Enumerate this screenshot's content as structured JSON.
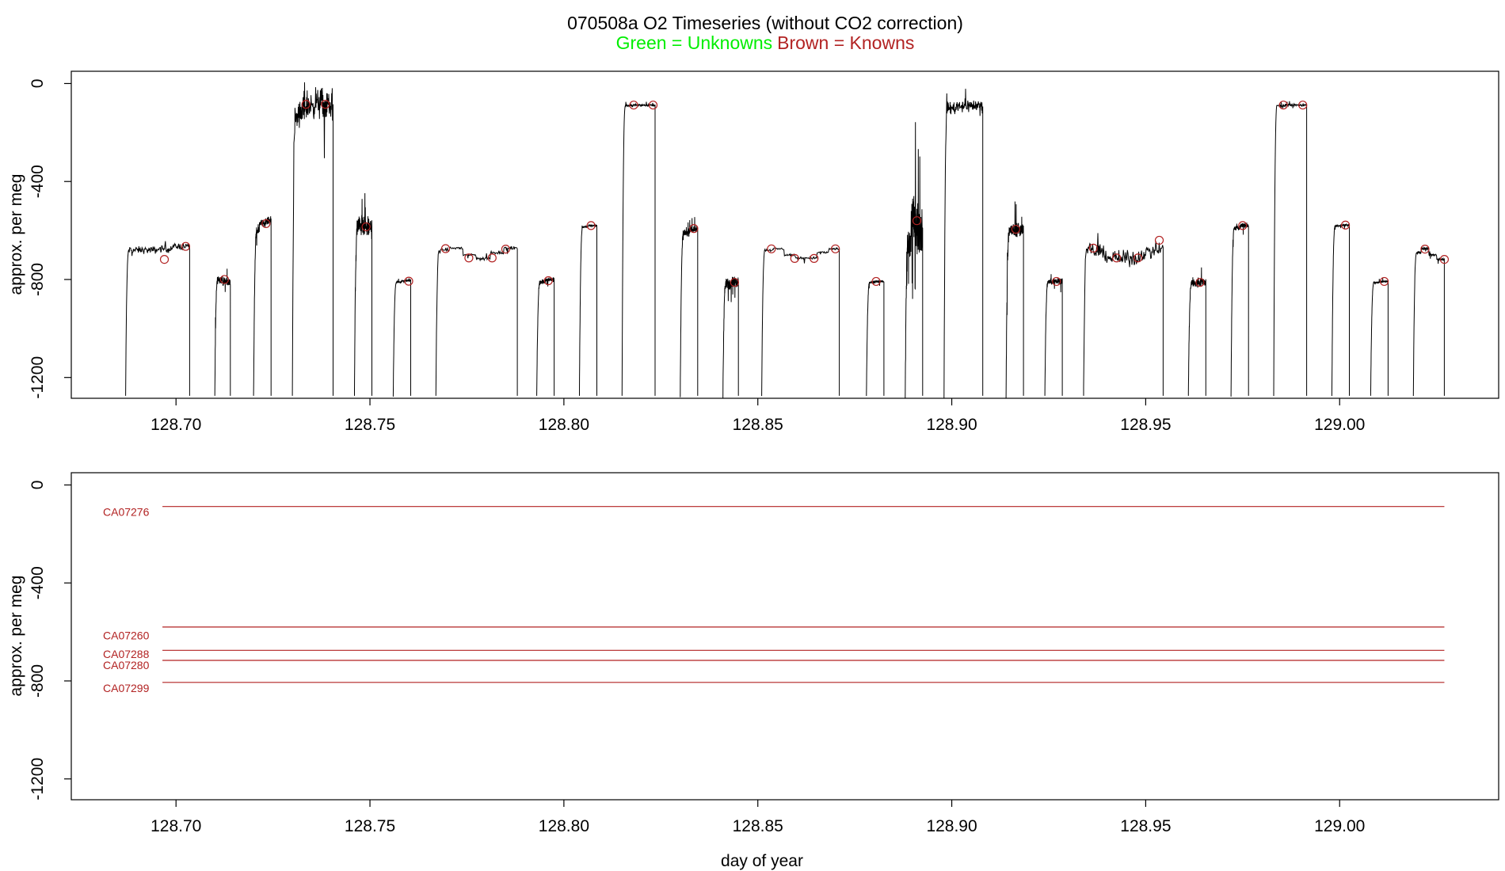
{
  "colors": {
    "unknowns": "#00ee00",
    "knowns": "#b22222",
    "trace": "#000000",
    "frame": "#000000"
  },
  "chart_data": [
    {
      "type": "line",
      "title": "070508a   O2 Timeseries (without CO2 correction)",
      "subtitle_parts": [
        "Green = Unknowns",
        "Brown = Knowns"
      ],
      "xlabel": "",
      "ylabel": "approx. per meg",
      "xlim": [
        128.673,
        129.041
      ],
      "ylim": [
        -1285,
        50
      ],
      "xticks": [
        128.7,
        128.75,
        128.8,
        128.85,
        128.9,
        128.95,
        129.0
      ],
      "xtick_labels": [
        "128.70",
        "128.75",
        "128.80",
        "128.85",
        "128.90",
        "128.95",
        "129.00"
      ],
      "yticks": [
        0,
        -400,
        -800,
        -1200
      ],
      "ytick_labels": [
        "0",
        "-400",
        "-800",
        "-1200"
      ],
      "segments": [
        {
          "start": 128.687,
          "end": 128.7035,
          "levels": [
            -680,
            -680,
            -675,
            -665
          ],
          "noise": 14
        },
        {
          "start": 128.71,
          "end": 128.714,
          "levels": [
            -800,
            -810
          ],
          "noise": 15
        },
        {
          "start": 128.72,
          "end": 128.7245,
          "levels": [
            -600,
            -570,
            -560
          ],
          "noise": 14
        },
        {
          "start": 128.73,
          "end": 128.7405,
          "levels": [
            -130,
            -90,
            -80,
            -90
          ],
          "noise": 60
        },
        {
          "start": 128.746,
          "end": 128.7505,
          "levels": [
            -580,
            -590
          ],
          "noise": 40
        },
        {
          "start": 128.756,
          "end": 128.7605,
          "levels": [
            -810,
            -805
          ],
          "noise": 4
        },
        {
          "start": 128.767,
          "end": 128.788,
          "levels": [
            -680,
            -672,
            -700,
            -715,
            -690,
            -672
          ],
          "noise": 7
        },
        {
          "start": 128.793,
          "end": 128.7975,
          "levels": [
            -810,
            -800
          ],
          "noise": 8
        },
        {
          "start": 128.804,
          "end": 128.8085,
          "levels": [
            -585,
            -580
          ],
          "noise": 4
        },
        {
          "start": 128.815,
          "end": 128.8235,
          "levels": [
            -90,
            -88,
            -88
          ],
          "noise": 4
        },
        {
          "start": 128.83,
          "end": 128.8345,
          "levels": [
            -610,
            -595
          ],
          "noise": 12
        },
        {
          "start": 128.841,
          "end": 128.845,
          "levels": [
            -820,
            -810
          ],
          "noise": 22
        },
        {
          "start": 128.851,
          "end": 128.871,
          "levels": [
            -680,
            -675,
            -700,
            -712,
            -712,
            -690,
            -675
          ],
          "noise": 5
        },
        {
          "start": 128.878,
          "end": 128.8825,
          "levels": [
            -812,
            -808
          ],
          "noise": 5
        },
        {
          "start": 128.888,
          "end": 128.8925,
          "levels": [
            -650,
            -560,
            -600
          ],
          "noise": 90
        },
        {
          "start": 128.898,
          "end": 128.908,
          "levels": [
            -100,
            -90,
            -90
          ],
          "noise": 25
        },
        {
          "start": 128.914,
          "end": 128.9185,
          "levels": [
            -600,
            -595
          ],
          "noise": 30
        },
        {
          "start": 128.924,
          "end": 128.9285,
          "levels": [
            -810,
            -805
          ],
          "noise": 12
        },
        {
          "start": 128.934,
          "end": 128.9545,
          "levels": [
            -680,
            -690,
            -710,
            -715,
            -715,
            -690,
            -675
          ],
          "noise": 30
        },
        {
          "start": 128.961,
          "end": 128.9655,
          "levels": [
            -815,
            -810
          ],
          "noise": 18
        },
        {
          "start": 128.972,
          "end": 128.9765,
          "levels": [
            -590,
            -580
          ],
          "noise": 10
        },
        {
          "start": 128.983,
          "end": 128.9915,
          "levels": [
            -90,
            -88,
            -88
          ],
          "noise": 4
        },
        {
          "start": 128.998,
          "end": 129.0025,
          "levels": [
            -582,
            -578
          ],
          "noise": 4
        },
        {
          "start": 129.008,
          "end": 129.0125,
          "levels": [
            -812,
            -808
          ],
          "noise": 4
        },
        {
          "start": 129.019,
          "end": 129.027,
          "levels": [
            -690,
            -675,
            -700,
            -718
          ],
          "noise": 6
        }
      ],
      "markers": [
        {
          "x": 128.697,
          "y": -718
        },
        {
          "x": 128.7025,
          "y": -665
        },
        {
          "x": 128.7125,
          "y": -800
        },
        {
          "x": 128.7232,
          "y": -572
        },
        {
          "x": 128.7335,
          "y": -85
        },
        {
          "x": 128.7385,
          "y": -85
        },
        {
          "x": 128.749,
          "y": -585
        },
        {
          "x": 128.76,
          "y": -807
        },
        {
          "x": 128.7695,
          "y": -674
        },
        {
          "x": 128.7755,
          "y": -712
        },
        {
          "x": 128.7815,
          "y": -712
        },
        {
          "x": 128.785,
          "y": -676
        },
        {
          "x": 128.796,
          "y": -805
        },
        {
          "x": 128.807,
          "y": -580
        },
        {
          "x": 128.818,
          "y": -88
        },
        {
          "x": 128.823,
          "y": -88
        },
        {
          "x": 128.8335,
          "y": -592
        },
        {
          "x": 128.844,
          "y": -812
        },
        {
          "x": 128.8535,
          "y": -675
        },
        {
          "x": 128.8595,
          "y": -714
        },
        {
          "x": 128.8645,
          "y": -714
        },
        {
          "x": 128.87,
          "y": -675
        },
        {
          "x": 128.8805,
          "y": -808
        },
        {
          "x": 128.891,
          "y": -560
        },
        {
          "x": 128.9165,
          "y": -595
        },
        {
          "x": 128.927,
          "y": -808
        },
        {
          "x": 128.9365,
          "y": -672
        },
        {
          "x": 128.9425,
          "y": -712
        },
        {
          "x": 128.948,
          "y": -712
        },
        {
          "x": 128.9535,
          "y": -640
        },
        {
          "x": 128.964,
          "y": -812
        },
        {
          "x": 128.975,
          "y": -580
        },
        {
          "x": 128.9855,
          "y": -88
        },
        {
          "x": 128.9905,
          "y": -88
        },
        {
          "x": 129.0015,
          "y": -578
        },
        {
          "x": 129.0115,
          "y": -808
        },
        {
          "x": 129.022,
          "y": -676
        },
        {
          "x": 129.027,
          "y": -718
        }
      ]
    },
    {
      "type": "line",
      "title": "",
      "xlabel": "day of year",
      "ylabel": "approx. per meg",
      "xlim": [
        128.673,
        129.041
      ],
      "ylim": [
        -1285,
        50
      ],
      "xticks": [
        128.7,
        128.75,
        128.8,
        128.85,
        128.9,
        128.95,
        129.0
      ],
      "xtick_labels": [
        "128.70",
        "128.75",
        "128.80",
        "128.85",
        "128.90",
        "128.95",
        "129.00"
      ],
      "yticks": [
        0,
        -400,
        -800,
        -1200
      ],
      "ytick_labels": [
        "0",
        "-400",
        "-800",
        "-1200"
      ],
      "series": [
        {
          "name": "CA07276",
          "y": -88,
          "label_y": -110
        },
        {
          "name": "CA07260",
          "y": -580,
          "label_y": -615
        },
        {
          "name": "CA07288",
          "y": -675,
          "label_y": -690
        },
        {
          "name": "CA07280",
          "y": -716,
          "label_y": -735
        },
        {
          "name": "CA07299",
          "y": -806,
          "label_y": -830
        }
      ],
      "line_x_range": [
        128.6965,
        129.027
      ]
    }
  ]
}
